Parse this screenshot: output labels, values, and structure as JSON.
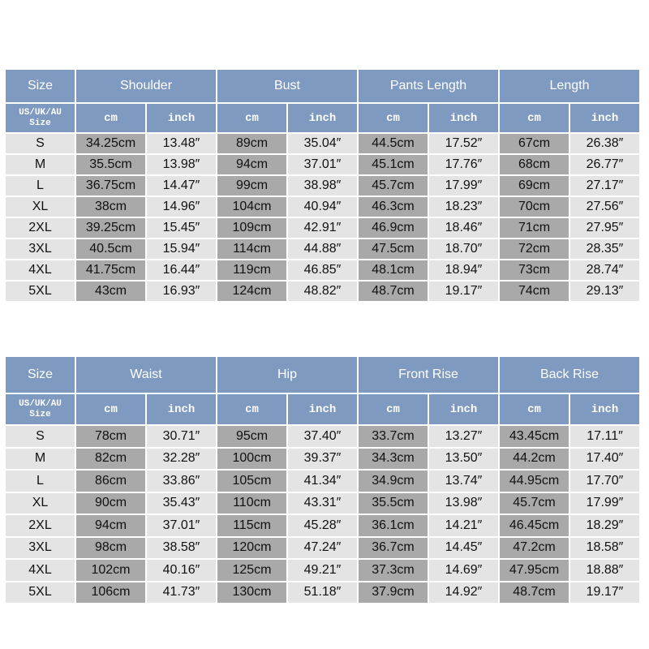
{
  "table1": {
    "size_header": "Size",
    "groups": [
      "Shoulder",
      "Bust",
      "Pants Length",
      "Length"
    ],
    "size_sub_line1": "US/UK/AU",
    "size_sub_line2": "Size",
    "cm_label": "cm",
    "inch_label": "inch",
    "rows": [
      [
        "S",
        "34.25cm",
        "13.48″",
        "89cm",
        "35.04″",
        "44.5cm",
        "17.52″",
        "67cm",
        "26.38″"
      ],
      [
        "M",
        "35.5cm",
        "13.98″",
        "94cm",
        "37.01″",
        "45.1cm",
        "17.76″",
        "68cm",
        "26.77″"
      ],
      [
        "L",
        "36.75cm",
        "14.47″",
        "99cm",
        "38.98″",
        "45.7cm",
        "17.99″",
        "69cm",
        "27.17″"
      ],
      [
        "XL",
        "38cm",
        "14.96″",
        "104cm",
        "40.94″",
        "46.3cm",
        "18.23″",
        "70cm",
        "27.56″"
      ],
      [
        "2XL",
        "39.25cm",
        "15.45″",
        "109cm",
        "42.91″",
        "46.9cm",
        "18.46″",
        "71cm",
        "27.95″"
      ],
      [
        "3XL",
        "40.5cm",
        "15.94″",
        "114cm",
        "44.88″",
        "47.5cm",
        "18.70″",
        "72cm",
        "28.35″"
      ],
      [
        "4XL",
        "41.75cm",
        "16.44″",
        "119cm",
        "46.85″",
        "48.1cm",
        "18.94″",
        "73cm",
        "28.74″"
      ],
      [
        "5XL",
        "43cm",
        "16.93″",
        "124cm",
        "48.82″",
        "48.7cm",
        "19.17″",
        "74cm",
        "29.13″"
      ]
    ]
  },
  "table2": {
    "size_header": "Size",
    "groups": [
      "Waist",
      "Hip",
      "Front Rise",
      "Back Rise"
    ],
    "size_sub_line1": "US/UK/AU",
    "size_sub_line2": "Size",
    "cm_label": "cm",
    "inch_label": "inch",
    "rows": [
      [
        "S",
        "78cm",
        "30.71″",
        "95cm",
        "37.40″",
        "33.7cm",
        "13.27″",
        "43.45cm",
        "17.11″"
      ],
      [
        "M",
        "82cm",
        "32.28″",
        "100cm",
        "39.37″",
        "34.3cm",
        "13.50″",
        "44.2cm",
        "17.40″"
      ],
      [
        "L",
        "86cm",
        "33.86″",
        "105cm",
        "41.34″",
        "34.9cm",
        "13.74″",
        "44.95cm",
        "17.70″"
      ],
      [
        "XL",
        "90cm",
        "35.43″",
        "110cm",
        "43.31″",
        "35.5cm",
        "13.98″",
        "45.7cm",
        "17.99″"
      ],
      [
        "2XL",
        "94cm",
        "37.01″",
        "115cm",
        "45.28″",
        "36.1cm",
        "14.21″",
        "46.45cm",
        "18.29″"
      ],
      [
        "3XL",
        "98cm",
        "38.58″",
        "120cm",
        "47.24″",
        "36.7cm",
        "14.45″",
        "47.2cm",
        "18.58″"
      ],
      [
        "4XL",
        "102cm",
        "40.16″",
        "125cm",
        "49.21″",
        "37.3cm",
        "14.69″",
        "47.95cm",
        "18.88″"
      ],
      [
        "5XL",
        "106cm",
        "41.73″",
        "130cm",
        "51.18″",
        "37.9cm",
        "14.92″",
        "48.7cm",
        "19.17″"
      ]
    ]
  }
}
